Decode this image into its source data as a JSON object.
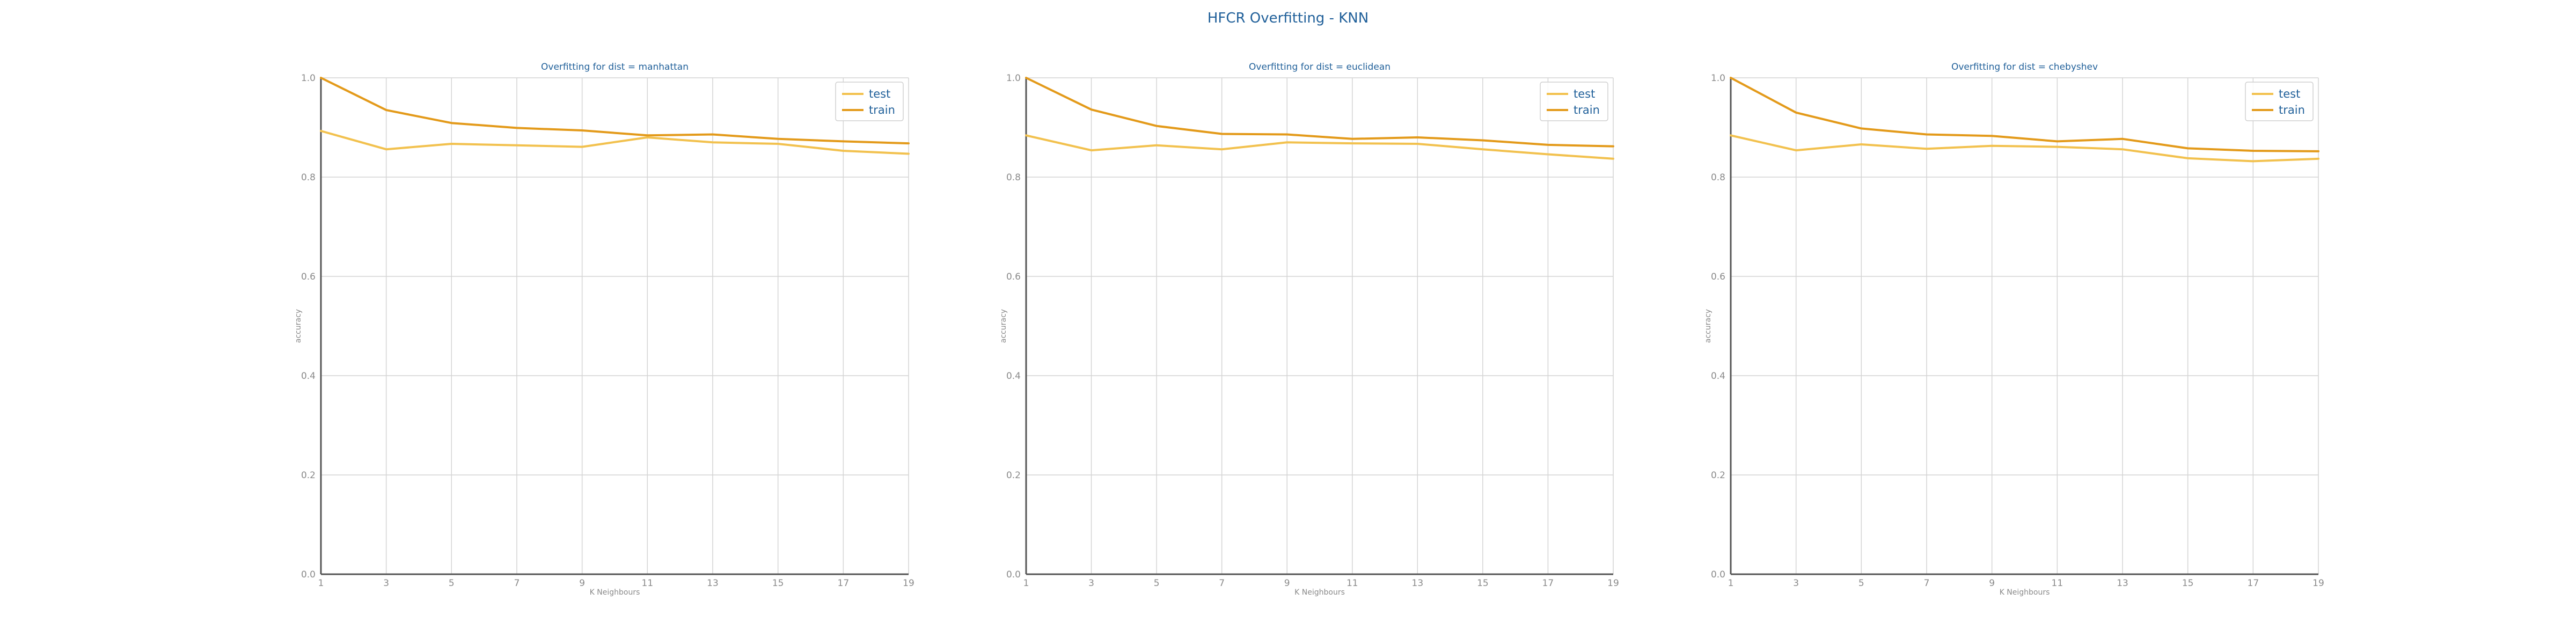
{
  "figure": {
    "title": "HFCR Overfitting - KNN"
  },
  "chart_data": [
    {
      "type": "line",
      "title": "Overfitting for dist = manhattan",
      "xlabel": "K Neighbours",
      "ylabel": "accuracy",
      "x": [
        1,
        3,
        5,
        7,
        9,
        11,
        13,
        15,
        17,
        19
      ],
      "xticks": [
        "1",
        "3",
        "5",
        "7",
        "9",
        "11",
        "13",
        "15",
        "17",
        "19"
      ],
      "yticks": [
        "0.0",
        "0.2",
        "0.4",
        "0.6",
        "0.8",
        "1.0"
      ],
      "xlim": [
        1,
        19
      ],
      "ylim": [
        0.0,
        1.0
      ],
      "grid": true,
      "legend": "top-right",
      "series": [
        {
          "name": "test",
          "color": "#f2c14e",
          "values": [
            0.893,
            0.856,
            0.867,
            0.864,
            0.861,
            0.88,
            0.87,
            0.867,
            0.853,
            0.847
          ]
        },
        {
          "name": "train",
          "color": "#e39a1a",
          "values": [
            1.0,
            0.935,
            0.909,
            0.899,
            0.894,
            0.884,
            0.886,
            0.877,
            0.872,
            0.868
          ]
        }
      ]
    },
    {
      "type": "line",
      "title": "Overfitting for dist = euclidean",
      "xlabel": "K Neighbours",
      "ylabel": "accuracy",
      "x": [
        1,
        3,
        5,
        7,
        9,
        11,
        13,
        15,
        17,
        19
      ],
      "xticks": [
        "1",
        "3",
        "5",
        "7",
        "9",
        "11",
        "13",
        "15",
        "17",
        "19"
      ],
      "yticks": [
        "0.0",
        "0.2",
        "0.4",
        "0.6",
        "0.8",
        "1.0"
      ],
      "xlim": [
        1,
        19
      ],
      "ylim": [
        0.0,
        1.0
      ],
      "grid": true,
      "legend": "top-right",
      "series": [
        {
          "name": "test",
          "color": "#f2c14e",
          "values": [
            0.884,
            0.854,
            0.864,
            0.856,
            0.87,
            0.868,
            0.867,
            0.856,
            0.846,
            0.837
          ]
        },
        {
          "name": "train",
          "color": "#e39a1a",
          "values": [
            1.0,
            0.936,
            0.903,
            0.887,
            0.886,
            0.877,
            0.88,
            0.874,
            0.865,
            0.862
          ]
        }
      ]
    },
    {
      "type": "line",
      "title": "Overfitting for dist = chebyshev",
      "xlabel": "K Neighbours",
      "ylabel": "accuracy",
      "x": [
        1,
        3,
        5,
        7,
        9,
        11,
        13,
        15,
        17,
        19
      ],
      "xticks": [
        "1",
        "3",
        "5",
        "7",
        "9",
        "11",
        "13",
        "15",
        "17",
        "19"
      ],
      "yticks": [
        "0.0",
        "0.2",
        "0.4",
        "0.6",
        "0.8",
        "1.0"
      ],
      "xlim": [
        1,
        19
      ],
      "ylim": [
        0.0,
        1.0
      ],
      "grid": true,
      "legend": "top-right",
      "series": [
        {
          "name": "test",
          "color": "#f2c14e",
          "values": [
            0.884,
            0.854,
            0.866,
            0.857,
            0.863,
            0.861,
            0.856,
            0.838,
            0.832,
            0.837
          ]
        },
        {
          "name": "train",
          "color": "#e39a1a",
          "values": [
            1.0,
            0.93,
            0.898,
            0.886,
            0.883,
            0.872,
            0.877,
            0.858,
            0.853,
            0.852
          ]
        }
      ]
    }
  ]
}
